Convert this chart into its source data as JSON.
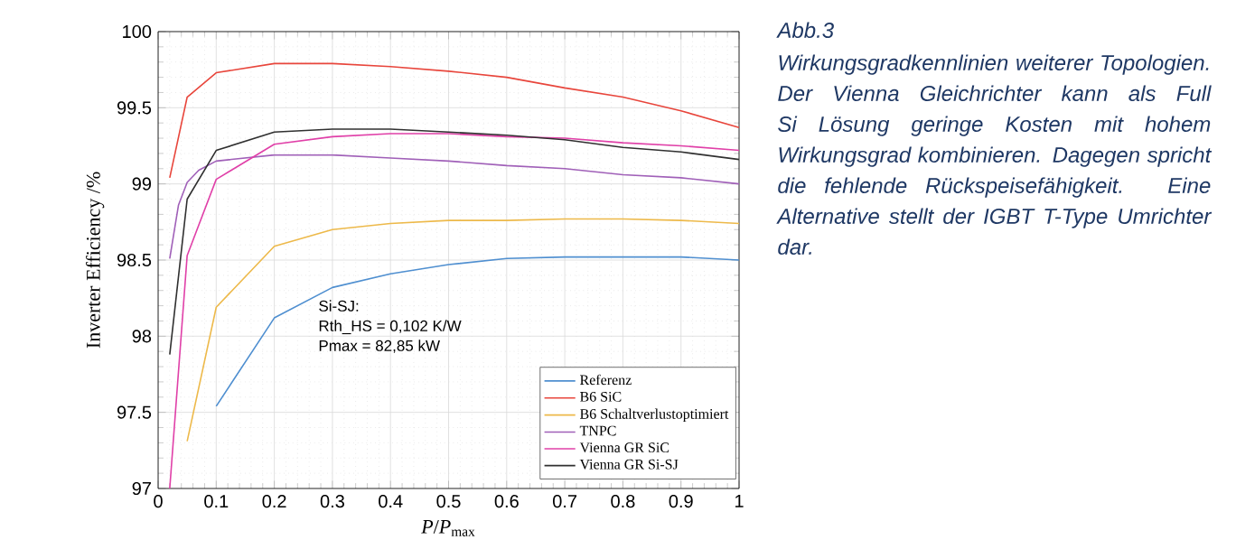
{
  "chart_data": {
    "type": "line",
    "xlabel": "*P*/*P*$_{max}$",
    "ylabel": "Inverter Efficiency /%",
    "xlim": [
      0,
      1
    ],
    "ylim": [
      97,
      100
    ],
    "xticks": [
      0,
      0.1,
      0.2,
      0.3,
      0.4,
      0.5,
      0.6,
      0.7,
      0.8,
      0.9,
      1
    ],
    "yticks": [
      97,
      97.5,
      98,
      98.5,
      99,
      99.5,
      100
    ],
    "grid": true,
    "legend": "bottom right",
    "line_style": "solid",
    "marker": "none",
    "series": [
      {
        "name": "Referenz",
        "color": "#4f8fd0",
        "x": [
          0.1,
          0.2,
          0.3,
          0.4,
          0.5,
          0.6,
          0.7,
          0.8,
          0.9,
          1
        ],
        "values": [
          97.54,
          98.12,
          98.32,
          98.41,
          98.47,
          98.51,
          98.52,
          98.52,
          98.52,
          98.5
        ]
      },
      {
        "name": "B6 SiC",
        "color": "#e8463c",
        "x": [
          0.02,
          0.05,
          0.1,
          0.2,
          0.3,
          0.4,
          0.5,
          0.6,
          0.7,
          0.8,
          0.9,
          1
        ],
        "values": [
          99.04,
          99.57,
          99.73,
          99.79,
          99.79,
          99.77,
          99.74,
          99.7,
          99.63,
          99.57,
          99.48,
          99.37
        ]
      },
      {
        "name": "B6 Schaltverlustoptimiert",
        "color": "#edb94a",
        "x": [
          0.05,
          0.1,
          0.2,
          0.3,
          0.4,
          0.5,
          0.6,
          0.7,
          0.8,
          0.9,
          1
        ],
        "values": [
          97.31,
          98.19,
          98.59,
          98.7,
          98.74,
          98.76,
          98.76,
          98.77,
          98.77,
          98.76,
          98.74
        ]
      },
      {
        "name": "TNPC",
        "color": "#a060b8",
        "x": [
          0.02,
          0.035,
          0.05,
          0.07,
          0.1,
          0.2,
          0.3,
          0.4,
          0.5,
          0.6,
          0.7,
          0.8,
          0.9,
          1
        ],
        "values": [
          98.51,
          98.86,
          99.01,
          99.09,
          99.15,
          99.19,
          99.19,
          99.17,
          99.15,
          99.12,
          99.1,
          99.06,
          99.04,
          99.0
        ]
      },
      {
        "name": "Vienna GR SiC",
        "color": "#e040a8",
        "x": [
          0.02,
          0.05,
          0.1,
          0.2,
          0.3,
          0.4,
          0.5,
          0.6,
          0.7,
          0.8,
          0.9,
          1
        ],
        "values": [
          97.0,
          98.53,
          99.03,
          99.26,
          99.31,
          99.33,
          99.33,
          99.31,
          99.3,
          99.27,
          99.25,
          99.22
        ]
      },
      {
        "name": "Vienna GR Si-SJ",
        "color": "#303030",
        "x": [
          0.02,
          0.05,
          0.1,
          0.2,
          0.3,
          0.4,
          0.5,
          0.6,
          0.7,
          0.8,
          0.9,
          1
        ],
        "values": [
          97.88,
          98.9,
          99.22,
          99.34,
          99.36,
          99.36,
          99.34,
          99.32,
          99.29,
          99.24,
          99.21,
          99.16
        ]
      }
    ],
    "annotations": [
      "Si-SJ:",
      "Rth_HS = 0,102 K/W",
      "Pmax = 82,85 kW",
      "Abb.3",
      "Wirkungsgradkennlinien weiterer Topologien. Der Vienna Gleichrichter kann als Full Si Lösung geringe Kosten mit hohem Wirkungsgrad kombinieren. Dagegen spricht die fehlende Rückspeisefähigkeit. Eine Alternative stellt der IGBT T-Type Umrichter dar."
    ]
  }
}
